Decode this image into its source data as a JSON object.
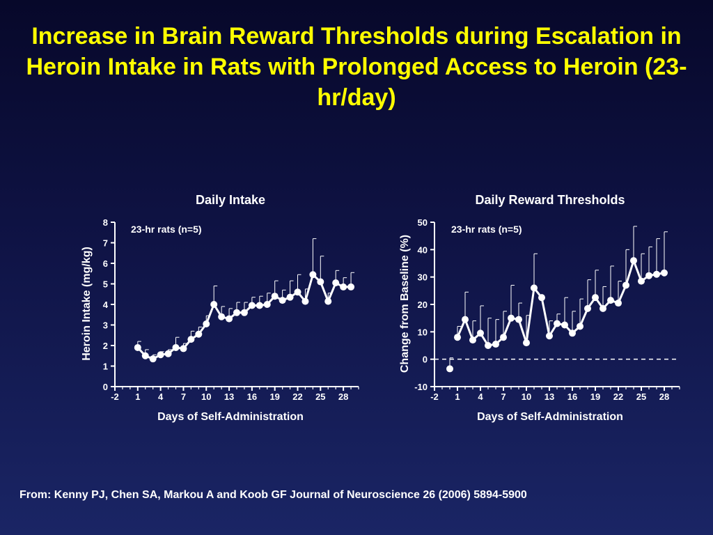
{
  "slide": {
    "title": "Increase in Brain Reward Thresholds during Escalation in Heroin Intake in Rats with Prolonged Access to Heroin (23-hr/day)",
    "citation": "From: Kenny PJ, Chen SA, Markou A and Koob GF Journal of Neuroscience 26 (2006) 5894-5900"
  },
  "colors": {
    "title": "#ffff00",
    "text": "#ffffff",
    "data": "#ffffff"
  },
  "chart_data": [
    {
      "type": "line",
      "title": "Daily Intake",
      "annotation": "23-hr rats (n=5)",
      "xlabel": "Days of Self-Administration",
      "ylabel": "Heroin Intake (mg/kg)",
      "xlim": [
        -2,
        30
      ],
      "ylim": [
        0,
        8
      ],
      "xticks": [
        -2,
        1,
        4,
        7,
        10,
        13,
        16,
        19,
        22,
        25,
        28
      ],
      "yticks": [
        0,
        1,
        2,
        3,
        4,
        5,
        6,
        7,
        8
      ],
      "grid": false,
      "legend": "none",
      "series": [
        {
          "x": [
            1,
            2,
            3,
            4,
            5,
            6,
            7,
            8,
            9,
            10,
            11,
            12,
            13,
            14,
            15,
            16,
            17,
            18,
            19,
            20,
            21,
            22,
            23,
            24,
            25,
            26,
            27,
            28,
            29
          ],
          "y": [
            1.9,
            1.5,
            1.35,
            1.55,
            1.6,
            1.9,
            1.85,
            2.3,
            2.55,
            3.05,
            4.0,
            3.4,
            3.3,
            3.6,
            3.6,
            3.95,
            3.95,
            4.0,
            4.4,
            4.2,
            4.35,
            4.6,
            4.15,
            5.45,
            5.1,
            4.15,
            5.05,
            4.85,
            4.85
          ],
          "err": [
            0.3,
            0.3,
            0.2,
            0.15,
            0.2,
            0.5,
            0.25,
            0.4,
            0.35,
            0.4,
            0.9,
            0.5,
            0.5,
            0.5,
            0.5,
            0.4,
            0.45,
            0.55,
            0.75,
            0.5,
            0.8,
            0.85,
            0.6,
            1.75,
            1.25,
            0.4,
            0.6,
            0.45,
            0.7
          ]
        }
      ]
    },
    {
      "type": "line",
      "title": "Daily Reward Thresholds",
      "annotation": "23-hr rats (n=5)",
      "xlabel": "Days of Self-Administration",
      "ylabel": "Change from Baseline (%)",
      "xlim": [
        -2,
        30
      ],
      "ylim": [
        -10,
        50
      ],
      "xticks": [
        -2,
        1,
        4,
        7,
        10,
        13,
        16,
        19,
        22,
        25,
        28
      ],
      "yticks": [
        -10,
        0,
        10,
        20,
        30,
        40,
        50
      ],
      "baseline": 0,
      "grid": false,
      "legend": "none",
      "series": [
        {
          "x": [
            0
          ],
          "y": [
            -3.5
          ],
          "err": [
            4
          ],
          "connect": false
        },
        {
          "x": [
            1,
            2,
            3,
            4,
            5,
            6,
            7,
            8,
            9,
            10,
            11,
            12,
            13,
            14,
            15,
            16,
            17,
            18,
            19,
            20,
            21,
            22,
            23,
            24,
            25,
            26,
            27,
            28
          ],
          "y": [
            8,
            14.5,
            7,
            9.5,
            5,
            5.5,
            8,
            15,
            14.5,
            6,
            26,
            22.5,
            8.5,
            13,
            12.5,
            9.5,
            12,
            18.5,
            22.5,
            18.5,
            21.5,
            20.5,
            27,
            36,
            28.5,
            30.5,
            31,
            31.5
          ],
          "err": [
            4,
            10,
            7,
            10,
            10,
            9,
            9.5,
            12,
            6,
            10,
            12.5,
            0,
            5.5,
            3.5,
            10,
            8,
            10,
            10.5,
            10,
            8,
            12.5,
            8,
            13,
            12.5,
            10,
            10.5,
            13,
            15
          ],
          "connect": true
        }
      ]
    }
  ]
}
